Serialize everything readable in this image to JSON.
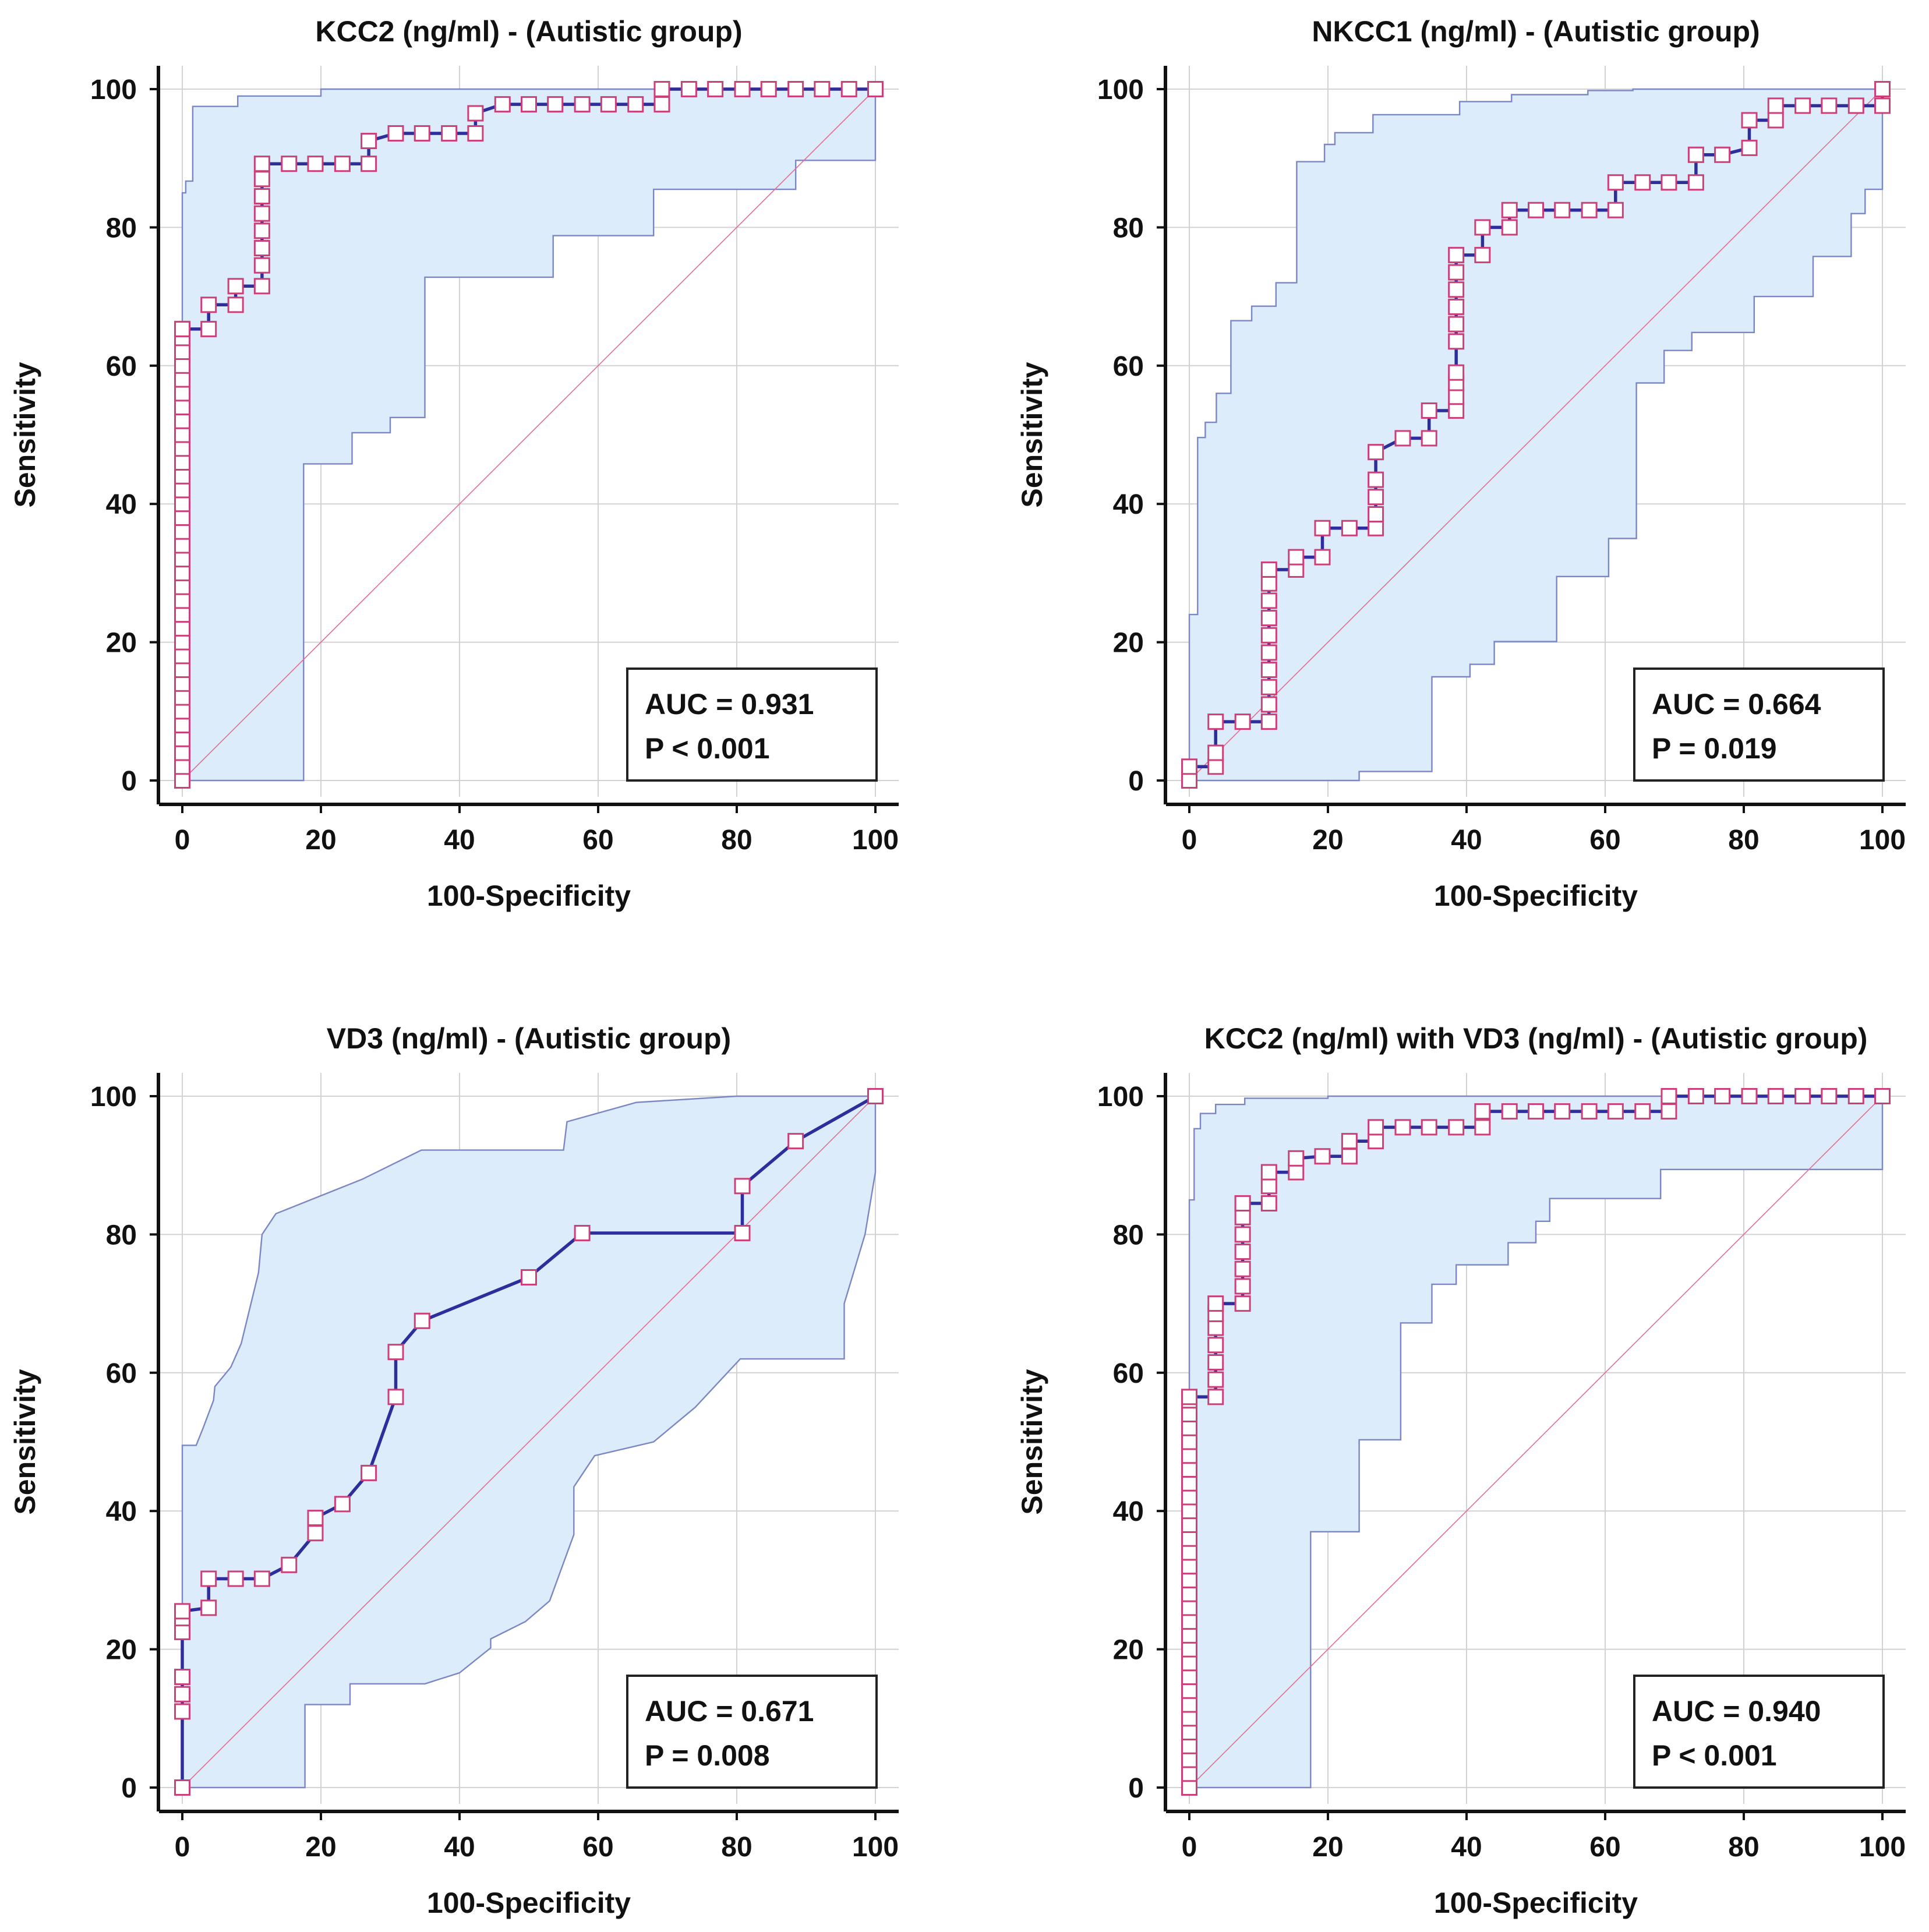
{
  "chart_data": [
    {
      "type": "roc",
      "title": "KCC2 (ng/ml) - (Autistic group)",
      "xlabel": "100-Specificity",
      "ylabel": "Sensitivity",
      "xlim": [
        0,
        100
      ],
      "ylim": [
        0,
        100
      ],
      "xticks": [
        "0",
        "20",
        "40",
        "60",
        "80",
        "100"
      ],
      "yticks": [
        "0",
        "20",
        "40",
        "60",
        "80",
        "100"
      ],
      "auc_label": "AUC = 0.931",
      "p_label": "P < 0.001",
      "roc_curve": {
        "x": [
          0,
          0,
          0,
          0,
          0,
          0,
          0,
          0,
          0,
          0,
          0,
          0,
          0,
          0,
          0,
          0,
          0,
          0,
          0,
          0,
          0,
          0,
          0,
          0,
          0,
          0,
          0,
          0,
          0,
          0,
          0,
          0,
          0,
          0,
          0,
          3.8,
          3.8,
          7.7,
          7.7,
          11.5,
          11.5,
          11.5,
          11.5,
          11.5,
          11.5,
          11.5,
          11.5,
          15.4,
          19.2,
          23.1,
          26.9,
          26.9,
          30.8,
          34.6,
          38.5,
          42.3,
          42.3,
          46.2,
          50,
          53.8,
          57.7,
          61.5,
          65.4,
          69.2,
          69.2,
          73.1,
          76.9,
          80.8,
          84.6,
          88.5,
          92.3,
          96.2,
          100
        ],
        "y": [
          0,
          2,
          4,
          6,
          8,
          10,
          12,
          14,
          16,
          18,
          20,
          22,
          24,
          26,
          28,
          30,
          32,
          34,
          36,
          38,
          40,
          42,
          44,
          46,
          48,
          50,
          52,
          54,
          56,
          58,
          60,
          62,
          64,
          65.3,
          65.3,
          65.3,
          68.8,
          68.8,
          71.5,
          71.5,
          74.5,
          77,
          79.5,
          82,
          84.5,
          87,
          89.2,
          89.2,
          89.2,
          89.2,
          89.2,
          92.5,
          93.6,
          93.6,
          93.6,
          93.6,
          96.5,
          97.8,
          97.8,
          97.8,
          97.8,
          97.8,
          97.8,
          97.8,
          100,
          100,
          100,
          100,
          100,
          100,
          100,
          100,
          100
        ]
      },
      "ci_upper": {
        "x": [
          0,
          0,
          0.5,
          0.5,
          1.5,
          1.5,
          8,
          8,
          20,
          20,
          69,
          69,
          100
        ],
        "y": [
          0,
          85,
          85,
          86.7,
          86.7,
          97.5,
          97.5,
          99,
          99,
          100,
          100,
          100,
          100
        ]
      },
      "ci_lower": {
        "x": [
          0,
          17.5,
          17.5,
          24.5,
          24.5,
          30,
          30,
          35,
          35,
          53.5,
          53.5,
          68,
          68,
          88.5,
          88.5,
          100,
          100
        ],
        "y": [
          0,
          0,
          45.8,
          45.8,
          50.3,
          50.3,
          52.5,
          52.5,
          72.8,
          72.8,
          78.8,
          78.8,
          85.5,
          85.5,
          89.7,
          89.7,
          100
        ]
      }
    },
    {
      "type": "roc",
      "title": "NKCC1 (ng/ml) - (Autistic group)",
      "xlabel": "100-Specificity",
      "ylabel": "Sensitivity",
      "xlim": [
        0,
        100
      ],
      "ylim": [
        0,
        100
      ],
      "xticks": [
        "0",
        "20",
        "40",
        "60",
        "80",
        "100"
      ],
      "yticks": [
        "0",
        "20",
        "40",
        "60",
        "80",
        "100"
      ],
      "auc_label": "AUC = 0.664",
      "p_label": "P = 0.019",
      "roc_curve": {
        "x": [
          0,
          0,
          3.8,
          3.8,
          3.8,
          7.7,
          11.5,
          11.5,
          11.5,
          11.5,
          11.5,
          11.5,
          11.5,
          11.5,
          11.5,
          11.5,
          15.4,
          15.4,
          19.2,
          19.2,
          23.1,
          26.9,
          26.9,
          26.9,
          26.9,
          26.9,
          30.8,
          34.6,
          34.6,
          38.5,
          38.5,
          38.5,
          38.5,
          38.5,
          38.5,
          38.5,
          38.5,
          38.5,
          38.5,
          42.3,
          42.3,
          46.2,
          46.2,
          50,
          53.8,
          57.7,
          61.5,
          61.5,
          65.4,
          69.2,
          73.1,
          73.1,
          76.9,
          80.8,
          80.8,
          84.6,
          84.6,
          88.5,
          92.3,
          96.2,
          100,
          100
        ],
        "y": [
          0,
          2,
          2,
          4,
          8.5,
          8.5,
          8.5,
          11,
          13.5,
          16,
          18.5,
          21,
          23.5,
          26,
          28.5,
          30.5,
          30.5,
          32.3,
          32.3,
          36.5,
          36.5,
          36.5,
          38.5,
          41,
          43.5,
          47.5,
          49.5,
          49.5,
          53.5,
          53.5,
          55.5,
          57.5,
          59,
          63.5,
          66,
          68.5,
          71,
          73.5,
          76,
          76,
          80,
          80,
          82.5,
          82.5,
          82.5,
          82.5,
          82.5,
          86.5,
          86.5,
          86.5,
          86.5,
          90.5,
          90.5,
          91.5,
          95.5,
          95.5,
          97.6,
          97.6,
          97.6,
          97.6,
          97.6,
          100
        ]
      },
      "ci_upper": {
        "x": [
          0,
          0,
          1.2,
          1.2,
          2.3,
          2.3,
          3.9,
          3.9,
          6,
          6,
          9,
          9,
          12.5,
          12.5,
          15.5,
          15.5,
          19.5,
          19.5,
          21,
          21,
          26.5,
          26.5,
          39,
          39,
          46.5,
          46.5,
          57.5,
          57.5,
          64,
          64,
          69.5,
          69.5,
          100
        ],
        "y": [
          0,
          24,
          24,
          49.6,
          49.6,
          51.8,
          51.8,
          56,
          56,
          66.5,
          66.5,
          68.6,
          68.6,
          72,
          72,
          89.5,
          89.5,
          92,
          92,
          93.7,
          93.7,
          96.3,
          96.3,
          98.2,
          98.2,
          99.2,
          99.2,
          99.8,
          99.8,
          100,
          100,
          100,
          100
        ]
      },
      "ci_lower": {
        "x": [
          0,
          24.5,
          24.5,
          35,
          35,
          40.5,
          40.5,
          44,
          44,
          53,
          53,
          60.5,
          60.5,
          64.5,
          64.5,
          68.5,
          68.5,
          72.5,
          72.5,
          81.5,
          81.5,
          90,
          90,
          95.5,
          95.5,
          97.5,
          97.5,
          100,
          100
        ],
        "y": [
          0,
          0,
          1.3,
          1.3,
          15,
          15,
          16.8,
          16.8,
          20.1,
          20.1,
          29.5,
          29.5,
          35,
          35,
          57.5,
          57.5,
          62.2,
          62.2,
          64.8,
          64.8,
          70,
          70,
          75.8,
          75.8,
          82,
          82,
          85.5,
          85.5,
          100
        ]
      }
    },
    {
      "type": "roc",
      "title": "VD3 (ng/ml) - (Autistic group)",
      "xlabel": "100-Specificity",
      "ylabel": "Sensitivity",
      "xlim": [
        0,
        100
      ],
      "ylim": [
        0,
        100
      ],
      "xticks": [
        "0",
        "20",
        "40",
        "60",
        "80",
        "100"
      ],
      "yticks": [
        "0",
        "20",
        "40",
        "60",
        "80",
        "100"
      ],
      "auc_label": "AUC = 0.671",
      "p_label": "P = 0.008",
      "roc_curve": {
        "x": [
          0,
          0,
          0,
          0,
          0,
          0,
          0,
          3.8,
          3.8,
          7.7,
          11.5,
          15.4,
          19.2,
          19.2,
          23.1,
          26.9,
          30.8,
          30.8,
          34.6,
          50,
          57.7,
          80.8,
          80.8,
          88.5,
          100
        ],
        "y": [
          0,
          11,
          13.5,
          16,
          22.5,
          24.5,
          25.5,
          26,
          30.2,
          30.2,
          30.2,
          32.2,
          36.8,
          39,
          41,
          45.5,
          56.5,
          63,
          67.5,
          73.8,
          80.2,
          80.2,
          87,
          93.5,
          100
        ]
      },
      "ci_upper": {
        "x": [
          0,
          0,
          2,
          3,
          4.5,
          4.7,
          7,
          8.5,
          11,
          11.5,
          13.5,
          26,
          34.5,
          55,
          55.5,
          65.5,
          80,
          100
        ],
        "y": [
          0,
          49.5,
          49.5,
          52,
          56,
          58,
          60.8,
          64.2,
          74.5,
          80,
          83,
          88,
          92.2,
          92.2,
          96.3,
          99.1,
          100,
          100
        ]
      },
      "ci_lower": {
        "x": [
          0,
          17.7,
          17.7,
          24.2,
          24.2,
          35,
          40,
          44.5,
          44.5,
          49.5,
          53,
          56.5,
          56.5,
          59.5,
          68,
          74,
          80.5,
          95.5,
          95.5,
          98.5,
          100,
          100
        ],
        "y": [
          0,
          0,
          12,
          12,
          15,
          15,
          16.6,
          20.2,
          21.5,
          24,
          27,
          36.6,
          43.5,
          48,
          50,
          55,
          62,
          62,
          70,
          80,
          89,
          100
        ]
      }
    },
    {
      "type": "roc",
      "title": "KCC2 (ng/ml) with VD3 (ng/ml) - (Autistic group)",
      "xlabel": "100-Specificity",
      "ylabel": "Sensitivity",
      "xlim": [
        0,
        100
      ],
      "ylim": [
        0,
        100
      ],
      "xticks": [
        "0",
        "20",
        "40",
        "60",
        "80",
        "100"
      ],
      "yticks": [
        "0",
        "20",
        "40",
        "60",
        "80",
        "100"
      ],
      "auc_label": "AUC = 0.940",
      "p_label": "P < 0.001",
      "roc_curve": {
        "x": [
          0,
          0,
          0,
          0,
          0,
          0,
          0,
          0,
          0,
          0,
          0,
          0,
          0,
          0,
          0,
          0,
          0,
          0,
          0,
          0,
          0,
          0,
          0,
          0,
          0,
          0,
          0,
          0,
          0,
          0,
          3.8,
          3.8,
          3.8,
          3.8,
          3.8,
          3.8,
          3.8,
          7.7,
          7.7,
          7.7,
          7.7,
          7.7,
          7.7,
          7.7,
          7.7,
          11.5,
          11.5,
          11.5,
          15.4,
          15.4,
          19.2,
          23.1,
          23.1,
          26.9,
          26.9,
          30.8,
          34.6,
          38.5,
          42.3,
          42.3,
          46.2,
          50,
          53.8,
          57.7,
          61.5,
          65.4,
          69.2,
          69.2,
          73.1,
          76.9,
          80.8,
          84.6,
          88.5,
          92.3,
          96.2,
          100
        ],
        "y": [
          0,
          2,
          4,
          6,
          8,
          10,
          12,
          14,
          16,
          18,
          20,
          22,
          24,
          26,
          28,
          30,
          32,
          34,
          36,
          38,
          40,
          42,
          44,
          46,
          48,
          50,
          52,
          54,
          56,
          56.5,
          56.5,
          59,
          61.5,
          64,
          66.5,
          68.5,
          70,
          70,
          72.5,
          75,
          77.5,
          80,
          82.5,
          84.5,
          84.5,
          84.5,
          87,
          89,
          89,
          91,
          91.3,
          91.3,
          93.5,
          93.5,
          95.5,
          95.5,
          95.5,
          95.5,
          95.5,
          97.8,
          97.8,
          97.8,
          97.8,
          97.8,
          97.8,
          97.8,
          97.8,
          100,
          100,
          100,
          100,
          100,
          100,
          100,
          100,
          100
        ]
      },
      "ci_upper": {
        "x": [
          0,
          0,
          0.7,
          0.7,
          1.6,
          1.6,
          3.8,
          3.8,
          8,
          8,
          20,
          20,
          69,
          69,
          100
        ],
        "y": [
          0,
          85,
          85,
          95.3,
          95.3,
          97.5,
          97.5,
          98.8,
          98.8,
          99.7,
          99.7,
          100,
          100,
          100,
          100
        ]
      },
      "ci_lower": {
        "x": [
          0,
          17.5,
          17.5,
          24.5,
          24.5,
          30.5,
          30.5,
          35,
          35,
          38.5,
          38.5,
          46,
          46,
          50,
          50,
          52,
          52,
          68,
          68,
          88.5,
          88.5,
          100,
          100
        ],
        "y": [
          0,
          0,
          37,
          37,
          50.3,
          50.3,
          67.2,
          67.2,
          72.8,
          72.8,
          75.6,
          75.6,
          78.8,
          78.8,
          81.9,
          81.9,
          85.2,
          85.2,
          89.4,
          89.4,
          89.4,
          89.4,
          100
        ]
      }
    }
  ]
}
